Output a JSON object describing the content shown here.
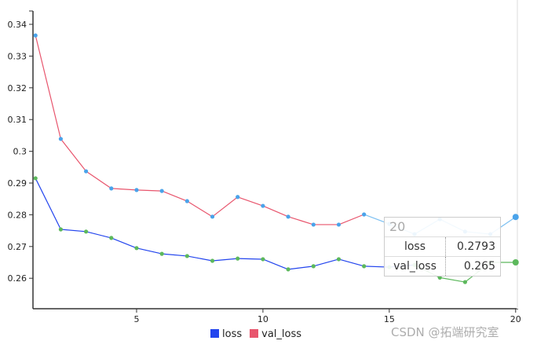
{
  "chart_data": {
    "type": "line",
    "x": [
      1,
      2,
      3,
      4,
      5,
      6,
      7,
      8,
      9,
      10,
      11,
      12,
      13,
      14,
      15,
      16,
      17,
      18,
      19,
      20
    ],
    "series": [
      {
        "name": "loss",
        "values": [
          0.3365,
          0.3039,
          0.2937,
          0.2883,
          0.2878,
          0.2875,
          0.2843,
          0.2794,
          0.2856,
          0.2828,
          0.2794,
          0.2769,
          0.2769,
          0.2801,
          0.2771,
          0.2739,
          0.2786,
          0.2747,
          0.2739,
          0.2793
        ],
        "line_color": "#e8556d",
        "point_color": "#4aa3ea",
        "legend_color": "#2244ee"
      },
      {
        "name": "val_loss",
        "values": [
          0.2915,
          0.2754,
          0.2747,
          0.2727,
          0.2695,
          0.2677,
          0.267,
          0.2655,
          0.2662,
          0.266,
          0.2628,
          0.2638,
          0.266,
          0.2638,
          0.2635,
          0.2642,
          0.2602,
          0.2588,
          0.265,
          0.265
        ],
        "line_color": "#2244ee",
        "point_color": "#5cb85c",
        "legend_color": "#e8556d"
      }
    ],
    "xlim": [
      0.9,
      20.1
    ],
    "ylim": [
      0.2504,
      0.3442
    ],
    "xticks": [
      5,
      10,
      15,
      20
    ],
    "yticks": [
      0.26,
      0.27,
      0.28,
      0.29,
      0.3,
      0.31,
      0.32,
      0.33,
      0.34
    ],
    "ytick_labels": [
      "0.26",
      "0.27",
      "0.28",
      "0.29",
      "0.3",
      "0.31",
      "0.32",
      "0.33",
      "0.34"
    ],
    "grid": false,
    "legend": "bottom-center",
    "highlight_color": "#7cc0f2"
  },
  "tooltip": {
    "title": "20",
    "rows": [
      {
        "label": "loss",
        "value": "0.2793"
      },
      {
        "label": "val_loss",
        "value": "0.265"
      }
    ]
  },
  "legend": {
    "items": [
      "loss",
      "val_loss"
    ]
  },
  "watermark": "CSDN @拓端研究室"
}
